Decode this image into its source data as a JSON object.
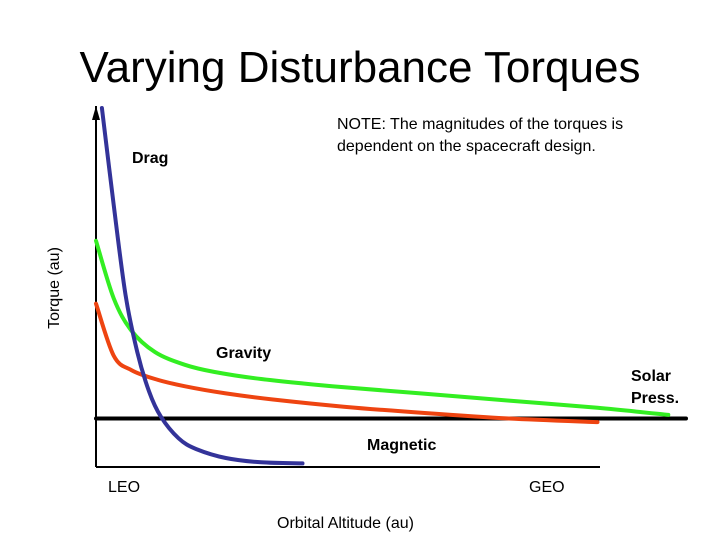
{
  "slide": {
    "title": "Varying Disturbance Torques",
    "note": [
      "NOTE:  The magnitudes of the torques is",
      "dependent on the spacecraft design."
    ]
  },
  "chart_data": {
    "type": "line",
    "title": "Varying Disturbance Torques",
    "xlabel": "Orbital Altitude (au)",
    "ylabel": "Torque (au)",
    "x_ticks": [
      "LEO",
      "GEO"
    ],
    "xlim": [
      0,
      100
    ],
    "ylim": [
      0,
      100
    ],
    "grid": false,
    "legend": "none",
    "series": [
      {
        "name": "Drag",
        "label_lines": [
          "Drag"
        ],
        "color": "#333399",
        "x": [
          1,
          3,
          5,
          7,
          9,
          11,
          14,
          17,
          22,
          28,
          35
        ],
        "y": [
          100,
          73,
          48,
          32,
          21,
          14,
          8,
          5,
          2.5,
          1.3,
          1
        ]
      },
      {
        "name": "Gravity",
        "label_lines": [
          "Gravity"
        ],
        "color": "#33ee22",
        "x": [
          0,
          3,
          6,
          10,
          15,
          20,
          28,
          40,
          55,
          70,
          85,
          97
        ],
        "y": [
          63,
          47,
          38,
          32,
          28.5,
          26.5,
          24.5,
          22.5,
          20.5,
          18.5,
          16.5,
          14.5
        ]
      },
      {
        "name": "Solar Press.",
        "label_lines": [
          "Solar",
          "Press."
        ],
        "color": "#ee4411",
        "x": [
          0,
          3,
          6,
          10,
          15,
          22,
          30,
          42,
          56,
          70,
          85
        ],
        "y": [
          45.5,
          31,
          27,
          24.5,
          22.5,
          20.5,
          18.8,
          16.8,
          15,
          13.5,
          12.5
        ]
      },
      {
        "name": "Magnetic",
        "label_lines": [
          "Magnetic"
        ],
        "color": "#000000",
        "x": [
          0,
          100
        ],
        "y": [
          13.5,
          13.5
        ]
      }
    ]
  }
}
